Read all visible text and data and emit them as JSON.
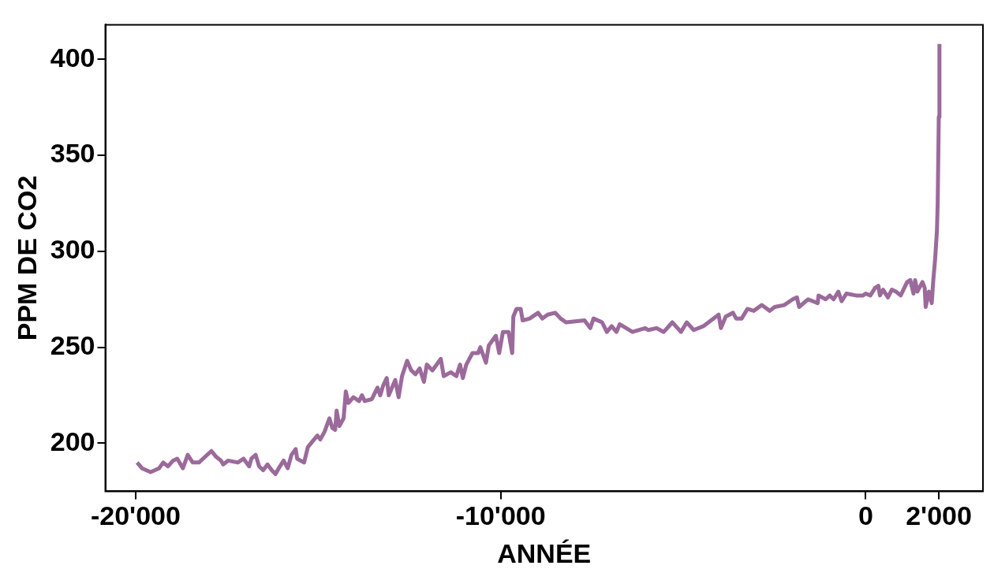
{
  "chart_data": {
    "type": "line",
    "xlabel": "ANNÉE",
    "ylabel": "PPM DE CO2",
    "color": "#9b6a9b",
    "x": [
      -19960,
      -19825,
      -19590,
      -19360,
      -19245,
      -19113,
      -18975,
      -18860,
      -18705,
      -18573,
      -18435,
      -18265,
      -17925,
      -17795,
      -17662,
      -17602,
      -17470,
      -17200,
      -17045,
      -16890,
      -16830,
      -16712,
      -16618,
      -16505,
      -16388,
      -16273,
      -16170,
      -16080,
      -15946,
      -15834,
      -15731,
      -15615,
      -15577,
      -15386,
      -15283,
      -15113,
      -15021,
      -14943,
      -14826,
      -14692,
      -14612,
      -14535,
      -14495,
      -14419,
      -14303,
      -14243,
      -14173,
      -14034,
      -13880,
      -13801,
      -13725,
      -13530,
      -13375,
      -13299,
      -13221,
      -13122,
      -13066,
      -12889,
      -12797,
      -12703,
      -12564,
      -12450,
      -12334,
      -12219,
      -12103,
      -12025,
      -11870,
      -11640,
      -11561,
      -11368,
      -11214,
      -11113,
      -11037,
      -10943,
      -10773,
      -10618,
      -10558,
      -10404,
      -10325,
      -10133,
      -10041,
      -9940,
      -9786,
      -9685,
      -9654,
      -9568,
      -9452,
      -9400,
      -9205,
      -8975,
      -8862,
      -8713,
      -8510,
      -8360,
      -8212,
      -7704,
      -7547,
      -7457,
      -7222,
      -7092,
      -6960,
      -6830,
      -6740,
      -6391,
      -6042,
      -5957,
      -5736,
      -5534,
      -5299,
      -5062,
      -4905,
      -4712,
      -4450,
      -4031,
      -3968,
      -3836,
      -3637,
      -3550,
      -3400,
      -3243,
      -3068,
      -2849,
      -2629,
      -2497,
      -2237,
      -2000,
      -1886,
      -1826,
      -1582,
      -1318,
      -1293,
      -1098,
      -986,
      -881,
      -751,
      -661,
      -531,
      -269,
      -76,
      -4,
      126,
      258,
      345,
      388,
      475,
      607,
      713,
      827,
      957,
      1132,
      1219,
      1307,
      1352,
      1412,
      1553,
      1614,
      1641,
      1728,
      1807,
      1850,
      1900,
      1950,
      1970,
      1990,
      2000,
      2018
    ],
    "values": [
      190,
      187,
      185,
      187,
      190,
      188,
      191,
      192,
      187,
      194,
      190,
      190,
      196,
      193,
      191,
      189,
      191,
      190,
      192,
      188,
      192,
      194,
      188,
      186,
      189,
      186,
      184,
      187,
      191,
      187,
      194,
      197,
      192,
      190,
      198,
      202,
      204,
      202,
      206,
      213,
      208,
      207,
      217,
      209,
      213,
      227,
      221,
      224,
      222,
      225,
      222,
      223,
      229,
      225,
      230,
      234,
      225,
      233,
      224,
      235,
      243,
      238,
      236,
      239,
      232,
      241,
      238,
      244,
      235,
      237,
      235,
      241,
      234,
      241,
      247,
      247,
      250,
      242,
      251,
      256,
      247,
      258,
      258,
      247,
      266,
      270,
      270,
      264,
      265,
      268,
      265,
      267,
      268,
      265,
      263,
      264,
      260,
      265,
      263,
      258,
      261,
      258,
      262,
      258,
      260,
      259,
      260,
      258,
      263,
      258,
      263,
      259,
      261,
      267,
      260,
      266,
      268,
      265,
      265,
      270,
      269,
      272,
      269,
      271,
      272,
      275,
      276,
      271,
      275,
      273,
      277,
      275,
      277,
      275,
      279,
      274,
      278,
      277,
      277,
      278,
      277,
      281,
      282,
      277,
      280,
      276,
      280,
      279,
      277,
      284,
      285,
      278,
      285,
      279,
      284,
      281,
      271,
      279,
      273,
      285,
      296,
      311,
      325,
      354,
      370,
      408
    ],
    "xlim": [
      -20830,
      3210
    ],
    "ylim": [
      175,
      418
    ],
    "xticks": [
      {
        "value": -20000,
        "label": "-20'000"
      },
      {
        "value": -10000,
        "label": "-10'000"
      },
      0,
      {
        "value": 2000,
        "label": "2'000"
      }
    ],
    "yticks": [
      200,
      250,
      300,
      350,
      400
    ]
  }
}
